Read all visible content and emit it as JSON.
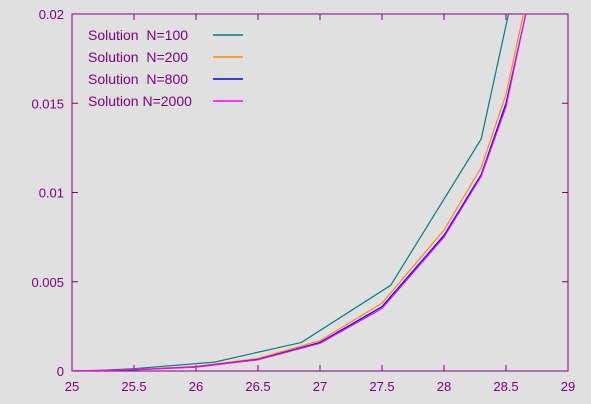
{
  "chart_data": {
    "type": "line",
    "title": "",
    "xlabel": "",
    "ylabel": "",
    "xlim": [
      25,
      29
    ],
    "ylim": [
      0,
      0.02
    ],
    "x_ticks": [
      "25",
      "25.5",
      "26",
      "26.5",
      "27",
      "27.5",
      "28",
      "28.5",
      "29"
    ],
    "y_ticks": [
      "0",
      "0.005",
      "0.01",
      "0.015",
      "0.02"
    ],
    "grid": false,
    "legend_position": "top-left",
    "axis_color": "#800080",
    "series": [
      {
        "name": "Solution  N=100",
        "color": "#008080",
        "x": [
          25.0,
          25.22,
          25.5,
          26.15,
          26.85,
          27.57,
          28.3,
          28.52
        ],
        "y": [
          0.0,
          3e-05,
          0.00013,
          0.0005,
          0.0016,
          0.0048,
          0.013,
          0.02
        ]
      },
      {
        "name": "Solution  N=200",
        "color": "#ff8c00",
        "x": [
          25.0,
          25.5,
          26.0,
          26.5,
          27.0,
          27.5,
          28.0,
          28.3,
          28.5,
          28.64
        ],
        "y": [
          0.0,
          8e-05,
          0.00025,
          0.0007,
          0.0017,
          0.0038,
          0.0079,
          0.0114,
          0.0155,
          0.02
        ]
      },
      {
        "name": "Solution  N=800",
        "color": "#0000ff",
        "x": [
          25.0,
          25.5,
          26.0,
          26.5,
          27.0,
          27.5,
          28.0,
          28.3,
          28.5,
          28.66
        ],
        "y": [
          0.0,
          7e-05,
          0.00023,
          0.00065,
          0.0016,
          0.0036,
          0.0076,
          0.011,
          0.015,
          0.02
        ]
      },
      {
        "name": "Solution N=2000",
        "color": "#ff00ff",
        "x": [
          25.0,
          25.5,
          26.0,
          26.5,
          27.0,
          27.5,
          28.0,
          28.3,
          28.5,
          28.66
        ],
        "y": [
          0.0,
          7e-05,
          0.00022,
          0.00063,
          0.00155,
          0.0035,
          0.0075,
          0.0109,
          0.0148,
          0.02
        ]
      }
    ]
  }
}
